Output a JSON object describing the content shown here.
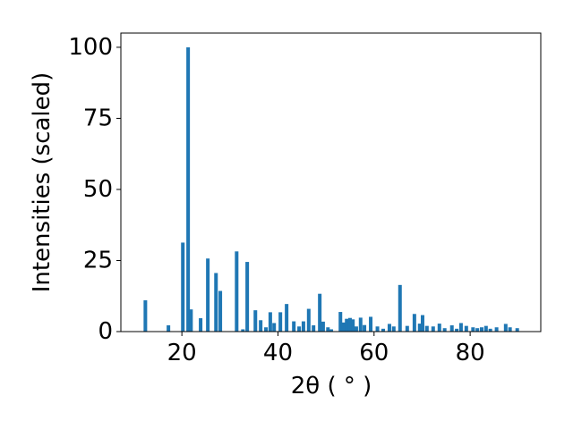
{
  "chart_data": {
    "type": "bar",
    "xlabel": "2θ ( ° )",
    "ylabel": "Intensities (scaled)",
    "color": "#1f77b4",
    "x": [
      12.4,
      17.2,
      20.2,
      21.3,
      21.9,
      23.9,
      25.4,
      27.1,
      28.0,
      31.4,
      32.7,
      33.6,
      35.3,
      36.4,
      37.5,
      38.4,
      39.2,
      40.5,
      41.8,
      43.3,
      44.4,
      45.3,
      46.4,
      47.4,
      48.7,
      49.4,
      50.4,
      51.1,
      53.0,
      53.7,
      54.3,
      55.0,
      55.6,
      56.3,
      57.2,
      58.0,
      59.3,
      60.7,
      61.9,
      63.2,
      64.1,
      65.4,
      66.9,
      68.4,
      69.5,
      70.1,
      71.0,
      72.3,
      73.6,
      74.7,
      76.2,
      77.2,
      78.1,
      79.2,
      80.6,
      81.5,
      82.4,
      83.3,
      84.2,
      85.5,
      87.4,
      88.3,
      89.8
    ],
    "values": [
      11,
      2.2,
      31.3,
      100,
      7.8,
      4.7,
      25.7,
      20.6,
      14.3,
      28.2,
      0.8,
      24.5,
      7.5,
      4,
      1.5,
      6.8,
      3,
      6.8,
      9.7,
      3.6,
      1.8,
      3.6,
      8,
      2.2,
      13.3,
      3.5,
      1.5,
      0.8,
      6.9,
      3.2,
      4.5,
      4.8,
      4.3,
      1.8,
      4.9,
      2.3,
      5.2,
      1.8,
      1,
      2.7,
      1.8,
      16.4,
      2,
      6.2,
      2.8,
      5.8,
      2,
      1.8,
      2.8,
      1.2,
      2.2,
      1,
      3,
      2,
      1.5,
      1.2,
      1.5,
      2,
      1,
      1.5,
      2.7,
      1.5,
      1.2
    ],
    "xlim": [
      7.3,
      94.7
    ],
    "xticks": [
      20,
      40,
      60,
      80
    ],
    "ylim": [
      0,
      105
    ],
    "yticks": [
      0,
      25,
      50,
      75,
      100
    ]
  }
}
